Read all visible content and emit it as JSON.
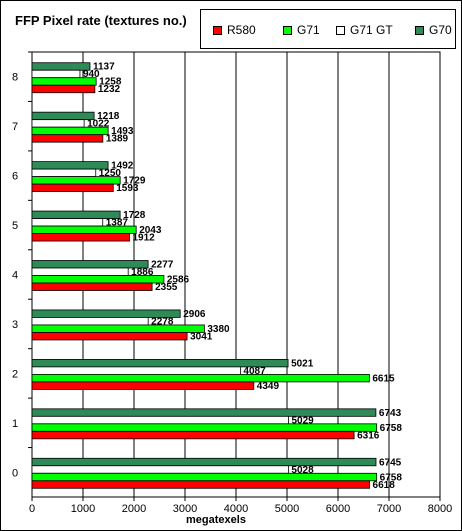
{
  "chart_data": {
    "type": "bar",
    "orientation": "horizontal",
    "title": "FFP Pixel rate (textures no.)",
    "xlabel": "megatexels",
    "ylabel": "",
    "xlim": [
      0,
      8000
    ],
    "x_ticks": [
      "0",
      "1000",
      "2000",
      "3000",
      "4000",
      "5000",
      "6000",
      "7000",
      "8000"
    ],
    "grid": true,
    "legend_position": "top-right",
    "categories": [
      "0",
      "1",
      "2",
      "3",
      "4",
      "5",
      "6",
      "7",
      "8"
    ],
    "series": [
      {
        "name": "R580",
        "color": "#ff0000",
        "values": [
          6618,
          6316,
          4349,
          3041,
          2355,
          1912,
          1593,
          1389,
          1232
        ]
      },
      {
        "name": "G71",
        "color": "#00ff00",
        "values": [
          6758,
          6758,
          6615,
          3380,
          2586,
          2043,
          1729,
          1493,
          1258
        ]
      },
      {
        "name": "G71 GT",
        "color": "#ffffff",
        "values": [
          5028,
          5029,
          4087,
          2278,
          1886,
          1387,
          1250,
          1022,
          940
        ]
      },
      {
        "name": "G70",
        "color": "#2e8b57",
        "values": [
          6745,
          6743,
          5021,
          2906,
          2277,
          1728,
          1492,
          1218,
          1137
        ]
      }
    ]
  }
}
